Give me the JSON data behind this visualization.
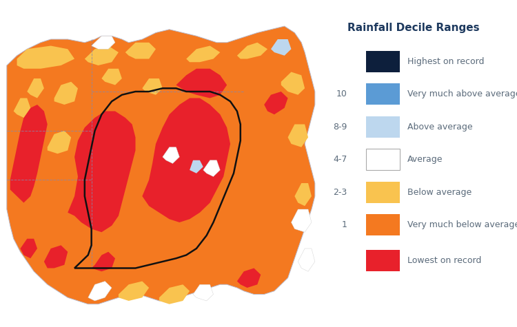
{
  "title": "Rainfall Decile Ranges",
  "title_color": "#1e3a5f",
  "background_color": "#ffffff",
  "legend_items": [
    {
      "label": "Highest on record",
      "color": "#0d1f3c",
      "decile": ""
    },
    {
      "label": "Very much above average",
      "color": "#5b9bd5",
      "decile": "10"
    },
    {
      "label": "Above average",
      "color": "#bdd7ee",
      "decile": "8-9"
    },
    {
      "label": "Average",
      "color": "#ffffff",
      "decile": "4-7"
    },
    {
      "label": "Below average",
      "color": "#f9c34f",
      "decile": "2-3"
    },
    {
      "label": "Very much below average",
      "color": "#f47920",
      "decile": "1"
    },
    {
      "label": "Lowest on record",
      "color": "#e8212b",
      "decile": ""
    }
  ],
  "map_colors": {
    "lowest_on_record": "#e8212b",
    "very_much_below": "#f47920",
    "below_average": "#f9c34f",
    "average": "#ffffff",
    "above_average": "#bdd7ee",
    "very_much_above": "#5b9bd5",
    "highest_on_record": "#0d1f3c"
  },
  "figsize": [
    7.5,
    4.75
  ],
  "dpi": 100,
  "text_color": "#5a6a7a",
  "title_fontsize": 11,
  "label_fontsize": 9,
  "decile_fontsize": 9
}
